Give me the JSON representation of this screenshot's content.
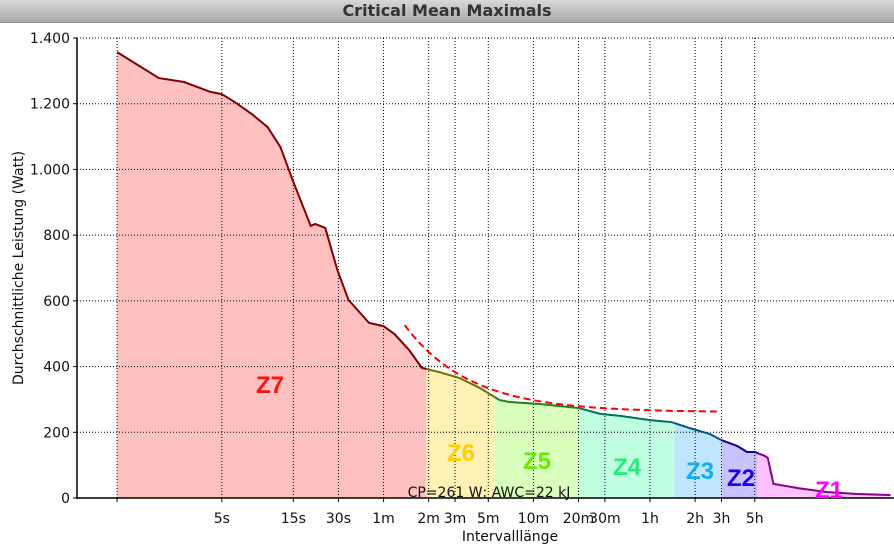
{
  "window": {
    "title": "Critical Mean Maximals"
  },
  "chart_data": {
    "type": "area",
    "title": "Critical Mean Maximals",
    "xlabel": "Intervalllänge",
    "ylabel": "Durchschnittliche Leistung (Watt)",
    "xscale": "log",
    "xlim": [
      0.54,
      153000
    ],
    "ylim": [
      0,
      1400
    ],
    "grid": true,
    "yticks": [
      {
        "value": 0,
        "label": "0"
      },
      {
        "value": 200,
        "label": "200"
      },
      {
        "value": 400,
        "label": "400"
      },
      {
        "value": 600,
        "label": "600"
      },
      {
        "value": 800,
        "label": "800"
      },
      {
        "value": 1000,
        "label": "1.000"
      },
      {
        "value": 1200,
        "label": "1.200"
      },
      {
        "value": 1400,
        "label": "1.400"
      }
    ],
    "xticks": [
      {
        "value": 1,
        "label": ""
      },
      {
        "value": 5,
        "label": "5s"
      },
      {
        "value": 15,
        "label": "15s"
      },
      {
        "value": 30,
        "label": "30s"
      },
      {
        "value": 60,
        "label": "1m"
      },
      {
        "value": 120,
        "label": "2m"
      },
      {
        "value": 180,
        "label": "3m"
      },
      {
        "value": 300,
        "label": "5m"
      },
      {
        "value": 600,
        "label": "10m"
      },
      {
        "value": 1200,
        "label": "20m"
      },
      {
        "value": 1800,
        "label": "30m"
      },
      {
        "value": 3600,
        "label": "1h"
      },
      {
        "value": 7200,
        "label": "2h"
      },
      {
        "value": 10800,
        "label": "3h"
      },
      {
        "value": 18000,
        "label": "5h"
      }
    ],
    "series": [
      {
        "x": [
          1,
          1.9,
          2.8,
          4.2,
          5,
          6.1,
          7.9,
          10.1,
          12.3,
          15,
          19.6,
          21,
          24.5,
          29.5,
          35,
          48,
          60,
          71,
          89,
          108,
          142,
          193,
          263,
          357,
          417,
          660,
          1200,
          1670,
          2280,
          3600,
          5000,
          6600,
          9000,
          10800,
          10801,
          13800,
          16000,
          18000,
          21000,
          22000,
          24000,
          35000,
          55000,
          87000,
          145000
        ],
        "y": [
          1357,
          1278,
          1266,
          1236,
          1229,
          1205,
          1169,
          1129,
          1068,
          962,
          828,
          834,
          822,
          694,
          603,
          533,
          523,
          499,
          450,
          396,
          383,
          365,
          335,
          298,
          292,
          286,
          274,
          256,
          250,
          237,
          231,
          213,
          195,
          176,
          176,
          158,
          140,
          140,
          128,
          122,
          43,
          30,
          18,
          12,
          9
        ]
      }
    ],
    "cp_model": {
      "label": "CP=261 W; AWC=22 kJ",
      "cp_watts": 261,
      "awc_joules": 22000,
      "x_range": [
        83,
        10600
      ],
      "color": "#ff0000",
      "style": "dashed"
    },
    "zones": [
      {
        "name": "Z7",
        "from": 1,
        "to": 116,
        "fill": "#ffc0c0",
        "line": "#800000",
        "label_color": "#ff1010"
      },
      {
        "name": "Z6",
        "from": 116,
        "to": 332,
        "fill": "#fff0b4",
        "line": "#707000",
        "label_color": "#ffd000"
      },
      {
        "name": "Z5",
        "from": 332,
        "to": 1215,
        "fill": "#d8ffbc",
        "line": "#208020",
        "label_color": "#66ee00"
      },
      {
        "name": "Z4",
        "from": 1215,
        "to": 5240,
        "fill": "#c0ffe0",
        "line": "#007060",
        "label_color": "#22ee77"
      },
      {
        "name": "Z3",
        "from": 5240,
        "to": 10800,
        "fill": "#c0e6ff",
        "line": "#005888",
        "label_color": "#11aaff"
      },
      {
        "name": "Z2",
        "from": 10800,
        "to": 18800,
        "fill": "#c8c2ff",
        "line": "#100090",
        "label_color": "#2200ee"
      },
      {
        "name": "Z1",
        "from": 18800,
        "to": 153000,
        "fill": "#ffc2ff",
        "line": "#880088",
        "label_color": "#ff00ff"
      }
    ]
  }
}
